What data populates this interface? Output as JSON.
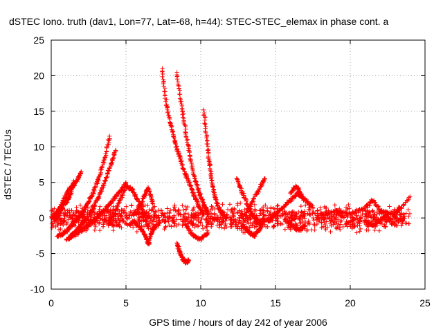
{
  "chart_data": {
    "type": "scatter",
    "title": "dSTEC Iono. truth (dav1, Lon=77, Lat=-68, h=44): STEC-STEC_elemax in phase cont. a",
    "xlabel": "GPS time / hours of day 242 of year 2006",
    "ylabel": "dSTEC  / TECUs",
    "xlim": [
      0,
      25
    ],
    "ylim": [
      -10,
      25
    ],
    "xticks": [
      0,
      5,
      10,
      15,
      20,
      25
    ],
    "yticks": [
      -10,
      -5,
      0,
      5,
      10,
      15,
      20,
      25
    ],
    "grid": true,
    "marker": "+",
    "color": "#ff0000",
    "series": [
      {
        "x": [
          0,
          0.3,
          0.6,
          0.9,
          1.2,
          1.5,
          1.8,
          2.0
        ],
        "y": [
          0,
          0.5,
          1.5,
          2.8,
          4.0,
          4.5,
          5.6,
          6.5
        ]
      },
      {
        "x": [
          0.2,
          0.5,
          0.8,
          1.1,
          1.3,
          1.5
        ],
        "y": [
          -0.3,
          0.5,
          1.8,
          2.5,
          3.5,
          5.2
        ]
      },
      {
        "x": [
          0.4,
          0.8,
          1.2,
          1.6,
          2.0,
          2.4,
          2.8,
          3.2,
          3.6,
          3.9
        ],
        "y": [
          -2.5,
          -2.2,
          -1.5,
          -0.5,
          0.5,
          1.8,
          3.5,
          5.8,
          8.5,
          11.5
        ]
      },
      {
        "x": [
          1.2,
          1.6,
          2.0,
          2.4,
          2.8,
          3.2,
          3.6,
          4.0,
          4.3
        ],
        "y": [
          -2.8,
          -2.0,
          -1.0,
          0.0,
          1.5,
          3.0,
          5.2,
          7.5,
          9.5
        ]
      },
      {
        "x": [
          1.0,
          1.5,
          2.0,
          2.5,
          3.0,
          3.5,
          4.0,
          4.5,
          5.0
        ],
        "y": [
          -3.0,
          -2.5,
          -1.8,
          -1.0,
          0.0,
          1.0,
          2.2,
          3.5,
          5.0
        ]
      },
      {
        "x": [
          3.8,
          4.2,
          4.6,
          5.0,
          5.4,
          5.8,
          6.2,
          6.5
        ],
        "y": [
          -1.0,
          0.5,
          2.5,
          4.5,
          4.0,
          2.5,
          0.8,
          -1.5
        ]
      },
      {
        "x": [
          5.5,
          5.9,
          6.2,
          6.5,
          6.8
        ],
        "y": [
          0.5,
          1.5,
          3.0,
          4.2,
          2.0
        ]
      },
      {
        "x": [
          5.5,
          6.0,
          6.3,
          6.5,
          6.7,
          7.0
        ],
        "y": [
          -0.5,
          -1.5,
          -2.5,
          -3.8,
          -2.0,
          -1.0
        ]
      },
      {
        "x": [
          7.4,
          7.7,
          8.0,
          8.3,
          8.6,
          8.9,
          9.2,
          9.5,
          9.8,
          10.2
        ],
        "y": [
          21.0,
          16.0,
          13.0,
          10.5,
          8.5,
          6.5,
          5.0,
          3.5,
          2.0,
          0.5
        ]
      },
      {
        "x": [
          8.4,
          8.7,
          9.0,
          9.3,
          9.6,
          9.9,
          10.2,
          10.5
        ],
        "y": [
          20.5,
          16.0,
          12.0,
          8.5,
          5.5,
          3.5,
          2.0,
          0.5
        ]
      },
      {
        "x": [
          8.4,
          8.6,
          8.8,
          9.0,
          9.2
        ],
        "y": [
          -3.5,
          -4.8,
          -5.8,
          -6.2,
          -6.0
        ]
      },
      {
        "x": [
          10.2,
          10.4,
          10.6,
          10.8,
          11.0,
          11.3,
          11.7
        ],
        "y": [
          15.0,
          11.0,
          7.5,
          4.5,
          2.5,
          1.0,
          0.0
        ]
      },
      {
        "x": [
          9.0,
          9.5,
          10.0,
          10.5
        ],
        "y": [
          -1.0,
          -2.5,
          -3.0,
          -2.0
        ]
      },
      {
        "x": [
          12.4,
          12.8,
          13.2,
          13.6,
          14.0
        ],
        "y": [
          5.5,
          3.5,
          1.5,
          0.0,
          -1.0
        ]
      },
      {
        "x": [
          12.8,
          13.2,
          13.6,
          14.0,
          14.2
        ],
        "y": [
          -1.0,
          -2.0,
          -2.5,
          -1.5,
          0.0
        ]
      },
      {
        "x": [
          13.0,
          13.5,
          14.0,
          14.3
        ],
        "y": [
          0.5,
          2.5,
          4.5,
          5.5
        ]
      },
      {
        "x": [
          14.5,
          15.0,
          15.5,
          16.0,
          16.5,
          17.0,
          17.5
        ],
        "y": [
          -0.5,
          0.5,
          1.5,
          2.5,
          3.5,
          2.5,
          1.5
        ]
      },
      {
        "x": [
          15.8,
          16.2,
          16.6,
          17.0
        ],
        "y": [
          -0.5,
          -1.2,
          -1.8,
          -1.0
        ]
      },
      {
        "x": [
          16.0,
          16.4,
          16.8
        ],
        "y": [
          3.5,
          4.5,
          3.0
        ]
      },
      {
        "x": [
          18.0,
          19.0,
          20.0,
          21.0,
          21.5,
          22.0,
          23.0,
          24.0
        ],
        "y": [
          0.5,
          1.0,
          0.5,
          1.5,
          2.5,
          1.0,
          0.5,
          3.0
        ]
      },
      {
        "x": [
          21.0,
          21.5,
          22.0,
          22.5
        ],
        "y": [
          -0.5,
          -1.0,
          -0.5,
          0.5
        ]
      }
    ],
    "noise_band": [
      {
        "x0": 0,
        "x1": 24,
        "ymin": -2.0,
        "ymax": 2.0
      }
    ]
  }
}
